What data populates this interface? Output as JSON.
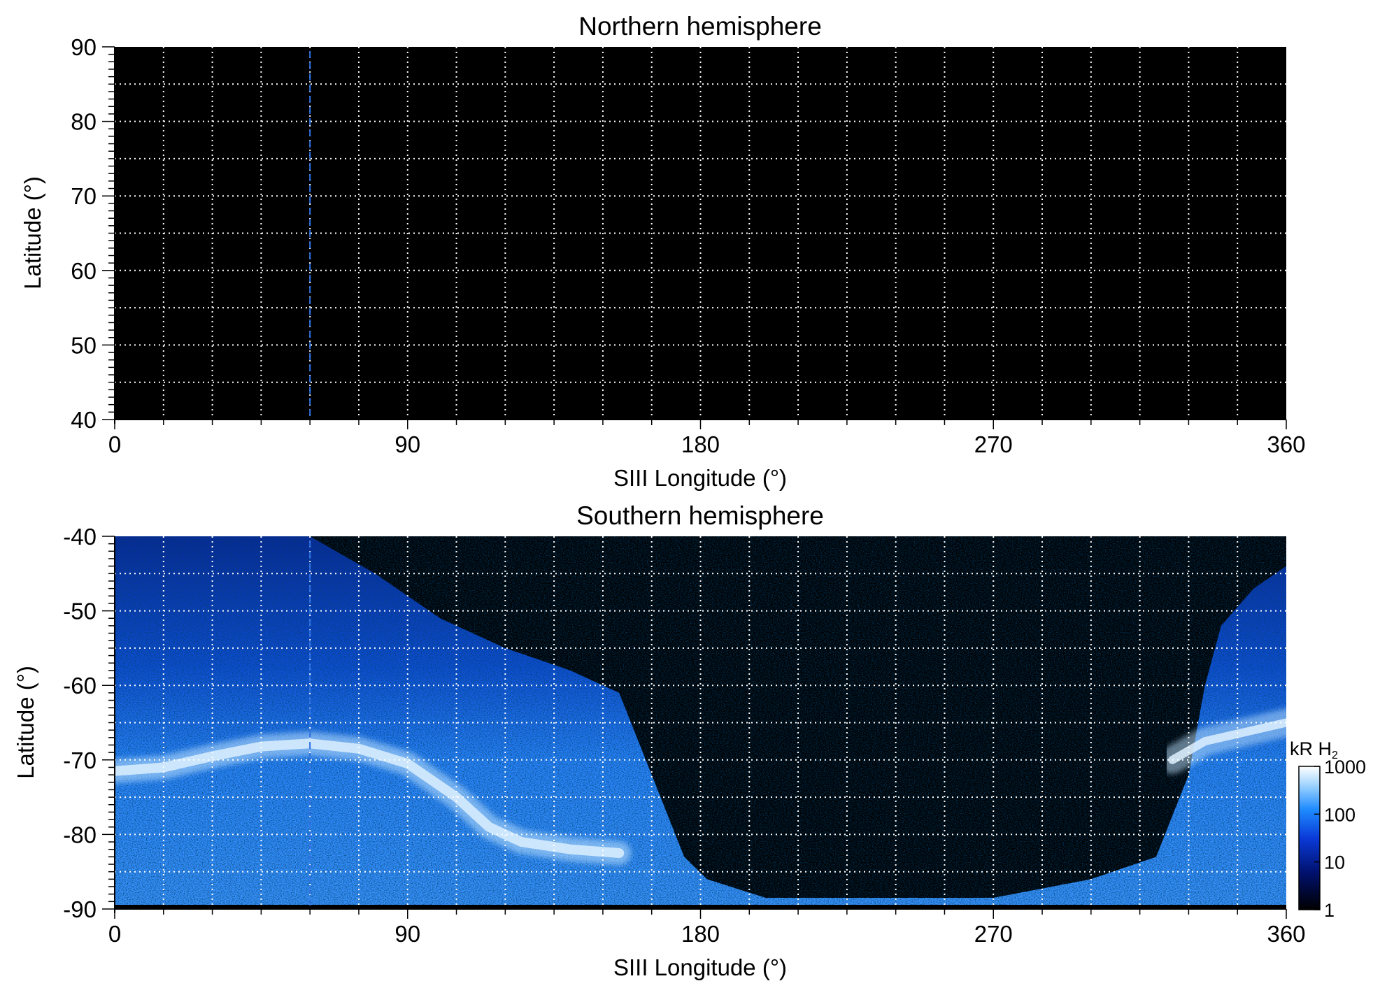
{
  "chart_data": [
    {
      "type": "heatmap",
      "title": "Northern hemisphere",
      "xlabel": "SIII Longitude (°)",
      "ylabel": "Latitude (°)",
      "xlim": [
        0,
        360
      ],
      "ylim": [
        40,
        90
      ],
      "xticks": [
        "0",
        "90",
        "180",
        "270",
        "360"
      ],
      "yticks": [
        "90",
        "80",
        "70",
        "60",
        "50",
        "40"
      ],
      "grid": true,
      "grid_lon_step": 15,
      "grid_lat_step": 5,
      "marker_longitude": 60,
      "emission": "none visible"
    },
    {
      "type": "heatmap",
      "title": "Southern hemisphere",
      "xlabel": "SIII Longitude (°)",
      "ylabel": "Latitude (°)",
      "xlim": [
        0,
        360
      ],
      "ylim": [
        -90,
        -40
      ],
      "xticks": [
        "0",
        "90",
        "180",
        "270",
        "360"
      ],
      "yticks": [
        "-40",
        "-50",
        "-60",
        "-70",
        "-80",
        "-90"
      ],
      "grid": true,
      "grid_lon_step": 15,
      "grid_lat_step": 5,
      "marker_longitude": 60,
      "observed_region_upper_boundary": [
        [
          0,
          -40
        ],
        [
          20,
          -40
        ],
        [
          60,
          -40
        ],
        [
          80,
          -45
        ],
        [
          100,
          -51
        ],
        [
          120,
          -55
        ],
        [
          140,
          -58
        ],
        [
          150,
          -60
        ],
        [
          155,
          -61
        ],
        [
          165,
          -72
        ],
        [
          175,
          -83
        ],
        [
          182,
          -86
        ],
        [
          200,
          -88.5
        ],
        [
          240,
          -88.5
        ],
        [
          270,
          -88.5
        ],
        [
          300,
          -86
        ],
        [
          320,
          -83
        ],
        [
          330,
          -72
        ],
        [
          335,
          -60
        ],
        [
          340,
          -52
        ],
        [
          350,
          -47
        ],
        [
          360,
          -44
        ]
      ],
      "main_oval": [
        [
          0,
          -71.5
        ],
        [
          15,
          -71
        ],
        [
          30,
          -69.5
        ],
        [
          45,
          -68.2
        ],
        [
          60,
          -67.8
        ],
        [
          75,
          -68.5
        ],
        [
          90,
          -70.5
        ],
        [
          105,
          -75
        ],
        [
          115,
          -79
        ],
        [
          125,
          -81
        ],
        [
          140,
          -82
        ],
        [
          155,
          -82.5
        ]
      ],
      "main_oval_right": [
        [
          325,
          -70
        ],
        [
          335,
          -67.5
        ],
        [
          345,
          -66.5
        ],
        [
          360,
          -65
        ]
      ],
      "colorbar": {
        "label": "kR H2",
        "scale": "log",
        "range": [
          1,
          1000
        ],
        "ticks": [
          "1",
          "10",
          "100",
          "1000"
        ],
        "colors": [
          "#000000",
          "#00106a",
          "#0a3ad8",
          "#1f8cff",
          "#a8d8ff",
          "#ffffff"
        ]
      }
    }
  ]
}
